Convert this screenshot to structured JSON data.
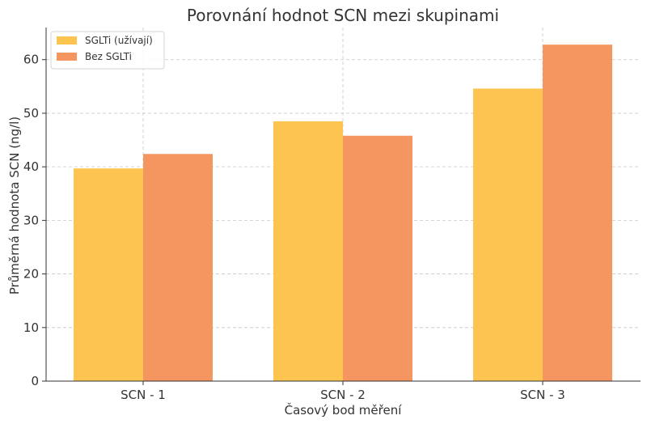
{
  "chart_data": {
    "type": "bar",
    "title": "Porovnání hodnot SCN mezi skupinami",
    "xlabel": "Časový bod měření",
    "ylabel": "Průměrná hodnota SCN (ng/l)",
    "categories": [
      "SCN - 1",
      "SCN - 2",
      "SCN - 3"
    ],
    "series": [
      {
        "name": "SGLTi (užívají)",
        "values": [
          39.7,
          48.5,
          54.6
        ],
        "color": "#fdc44f"
      },
      {
        "name": "Bez SGLTi",
        "values": [
          42.4,
          45.8,
          62.8
        ],
        "color": "#f5955f"
      }
    ],
    "ylim": [
      0,
      66
    ],
    "yticks": [
      0,
      10,
      20,
      30,
      40,
      50,
      60
    ],
    "grid": true,
    "legend_position": "top-left"
  }
}
